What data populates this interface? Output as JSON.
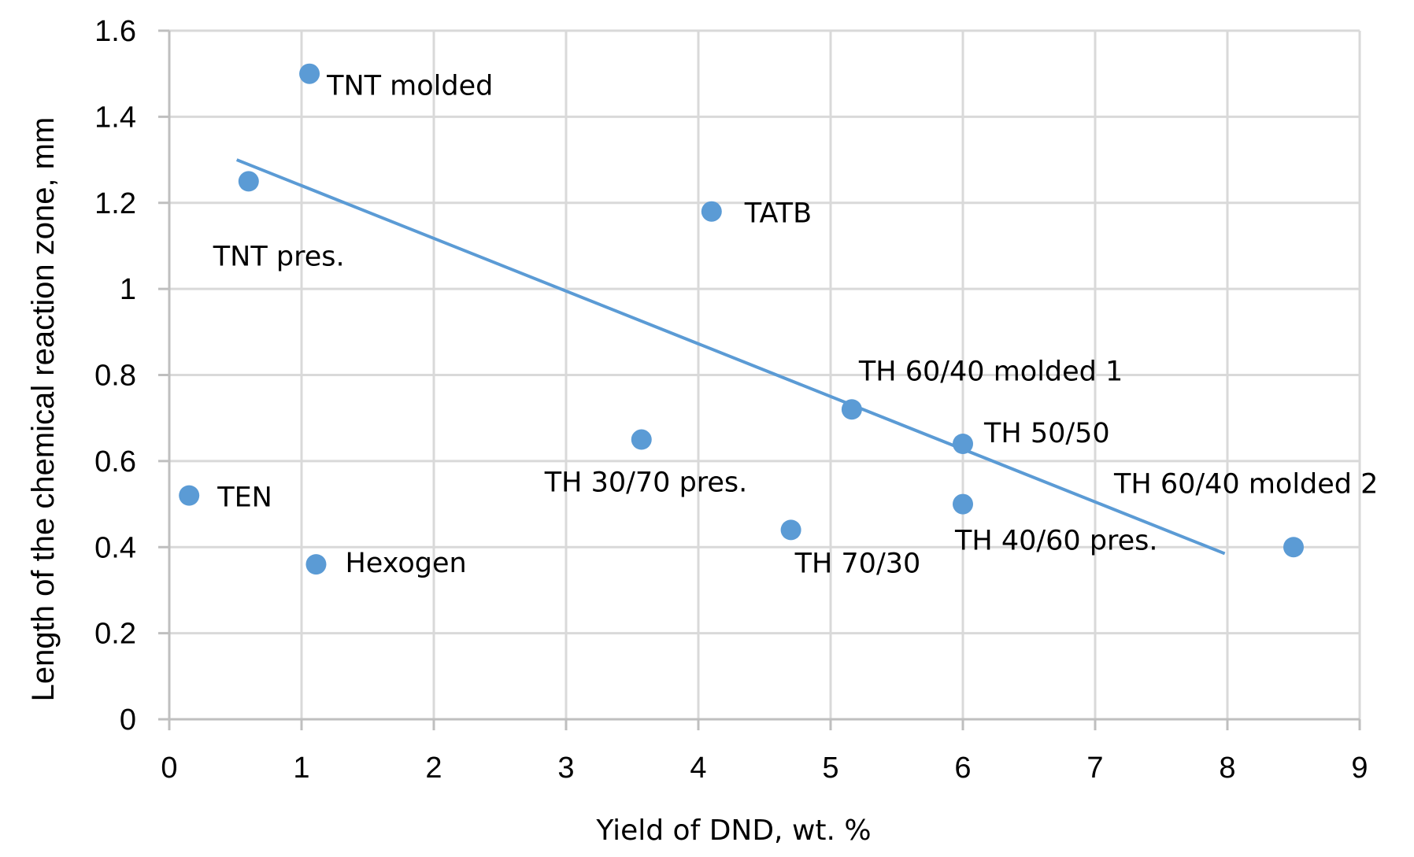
{
  "chart_data": {
    "type": "scatter",
    "title": "",
    "xlabel": "Yield of DND, wt. %",
    "ylabel": "Length of the chemical reaction zone,  mm",
    "xlim": [
      0,
      9
    ],
    "ylim": [
      0,
      1.6
    ],
    "x_ticks": [
      "0",
      "1",
      "2",
      "3",
      "4",
      "5",
      "6",
      "7",
      "8",
      "9"
    ],
    "y_ticks": [
      "0",
      "0.2",
      "0.4",
      "0.6",
      "0.8",
      "1",
      "1.2",
      "1.4",
      "1.6"
    ],
    "grid": true,
    "legend": "none",
    "marker_color": "#5B9BD5",
    "trendline_color": "#5B9BD5",
    "points": [
      {
        "label": "TNT molded",
        "x": 1.06,
        "y": 1.5
      },
      {
        "label": "TNT pres.",
        "x": 0.6,
        "y": 1.25
      },
      {
        "label": "TATB",
        "x": 4.1,
        "y": 1.18
      },
      {
        "label": "TH 60/40 molded 1",
        "x": 5.16,
        "y": 0.72
      },
      {
        "label": "TH 50/50",
        "x": 6.0,
        "y": 0.64
      },
      {
        "label": "TH 30/70 pres.",
        "x": 3.57,
        "y": 0.65
      },
      {
        "label": "TEN",
        "x": 0.15,
        "y": 0.52
      },
      {
        "label": "TH 40/60 pres.",
        "x": 6.0,
        "y": 0.5
      },
      {
        "label": "TH 70/30",
        "x": 4.7,
        "y": 0.44
      },
      {
        "label": "TH 60/40 molded 2",
        "x": 8.5,
        "y": 0.4
      },
      {
        "label": "Hexogen",
        "x": 1.11,
        "y": 0.36
      }
    ],
    "trendline": {
      "type": "linear",
      "x": [
        0.51,
        7.98
      ],
      "y": [
        1.3,
        0.385
      ]
    }
  }
}
